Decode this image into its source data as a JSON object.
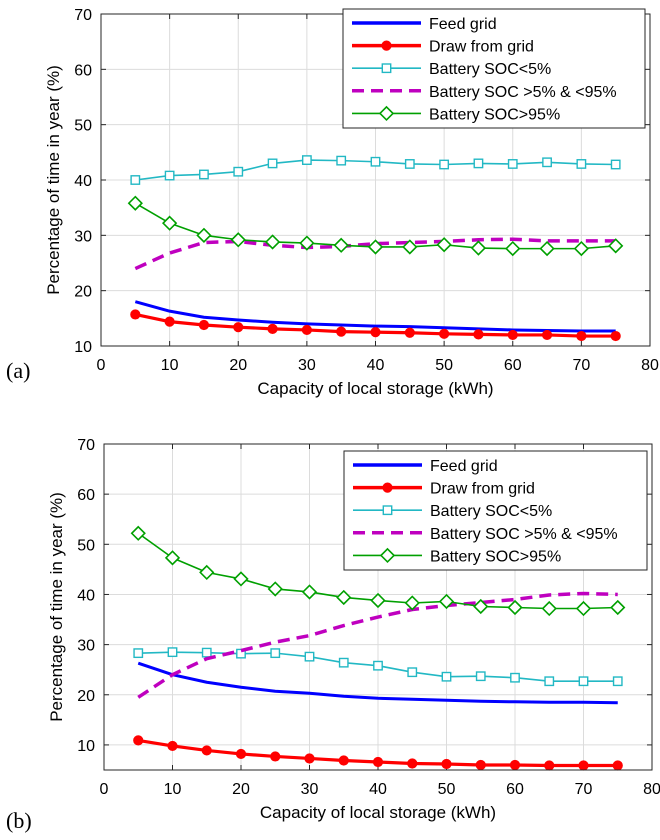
{
  "panels": [
    {
      "label": "(a)",
      "chart_data": {
        "type": "line",
        "xlabel": "Capacity of local storage (kWh)",
        "ylabel": "Percentage of time in year (%)",
        "xlim": [
          0,
          80
        ],
        "ylim": [
          10,
          70
        ],
        "xticks": [
          0,
          10,
          20,
          30,
          40,
          50,
          60,
          70,
          80
        ],
        "yticks": [
          10,
          20,
          30,
          40,
          50,
          60,
          70
        ],
        "grid": true,
        "legend_position": "top-right",
        "x": [
          5,
          10,
          15,
          20,
          25,
          30,
          35,
          40,
          45,
          50,
          55,
          60,
          65,
          70,
          75
        ],
        "series": [
          {
            "name": "Feed grid",
            "color": "#0000ff",
            "dash": "solid",
            "marker": "none",
            "values": [
              18.0,
              16.3,
              15.2,
              14.7,
              14.3,
              14.0,
              13.8,
              13.6,
              13.5,
              13.3,
              13.1,
              12.9,
              12.8,
              12.7,
              12.7
            ]
          },
          {
            "name": "Draw from grid",
            "color": "#ff0000",
            "dash": "solid",
            "marker": "dot",
            "values": [
              15.7,
              14.4,
              13.8,
              13.4,
              13.1,
              12.9,
              12.6,
              12.5,
              12.4,
              12.2,
              12.1,
              12.0,
              12.0,
              11.8,
              11.8
            ]
          },
          {
            "name": "Battery SOC<5%",
            "color": "#22b8c4",
            "dash": "solid",
            "marker": "square",
            "values": [
              40.0,
              40.8,
              41.0,
              41.5,
              43.0,
              43.6,
              43.5,
              43.3,
              42.9,
              42.8,
              43.0,
              42.9,
              43.2,
              42.9,
              42.8
            ]
          },
          {
            "name": "Battery SOC >5% & <95%",
            "color": "#bf00bf",
            "dash": "dashed",
            "marker": "none",
            "values": [
              24.0,
              26.8,
              28.7,
              28.9,
              28.2,
              27.8,
              28.0,
              28.5,
              28.7,
              28.9,
              29.2,
              29.3,
              29.0,
              29.0,
              29.0
            ]
          },
          {
            "name": "Battery SOC>95%",
            "color": "#00a000",
            "dash": "solid",
            "marker": "diamond",
            "values": [
              35.8,
              32.2,
              30.0,
              29.2,
              28.8,
              28.6,
              28.2,
              27.9,
              27.9,
              28.3,
              27.7,
              27.6,
              27.6,
              27.6,
              28.1
            ]
          }
        ]
      }
    },
    {
      "label": "(b)",
      "chart_data": {
        "type": "line",
        "xlabel": "Capacity of local storage (kWh)",
        "ylabel": "Percentage of time in year (%)",
        "xlim": [
          0,
          80
        ],
        "ylim": [
          5,
          70
        ],
        "xticks": [
          0,
          10,
          20,
          30,
          40,
          50,
          60,
          70,
          80
        ],
        "yticks": [
          10,
          20,
          30,
          40,
          50,
          60,
          70
        ],
        "grid": true,
        "legend_position": "top-right",
        "x": [
          5,
          10,
          15,
          20,
          25,
          30,
          35,
          40,
          45,
          50,
          55,
          60,
          65,
          70,
          75
        ],
        "series": [
          {
            "name": "Feed grid",
            "color": "#0000ff",
            "dash": "solid",
            "marker": "none",
            "values": [
              26.3,
              24.0,
              22.5,
              21.5,
              20.7,
              20.3,
              19.7,
              19.3,
              19.1,
              18.9,
              18.7,
              18.6,
              18.5,
              18.5,
              18.4
            ]
          },
          {
            "name": "Draw from grid",
            "color": "#ff0000",
            "dash": "solid",
            "marker": "dot",
            "values": [
              10.9,
              9.8,
              8.9,
              8.2,
              7.7,
              7.3,
              6.9,
              6.6,
              6.3,
              6.2,
              6.0,
              6.0,
              5.9,
              5.9,
              5.9
            ]
          },
          {
            "name": "Battery SOC<5%",
            "color": "#22b8c4",
            "dash": "solid",
            "marker": "square",
            "values": [
              28.3,
              28.5,
              28.4,
              28.2,
              28.3,
              27.6,
              26.4,
              25.8,
              24.5,
              23.6,
              23.7,
              23.4,
              22.7,
              22.7,
              22.7
            ]
          },
          {
            "name": "Battery SOC >5% & <95%",
            "color": "#bf00bf",
            "dash": "dashed",
            "marker": "none",
            "values": [
              19.5,
              24.0,
              27.2,
              28.8,
              30.5,
              31.8,
              33.8,
              35.5,
              37.0,
              37.8,
              38.4,
              39.0,
              39.9,
              40.2,
              40.0
            ]
          },
          {
            "name": "Battery SOC>95%",
            "color": "#00a000",
            "dash": "solid",
            "marker": "diamond",
            "values": [
              52.2,
              47.3,
              44.4,
              43.1,
              41.1,
              40.5,
              39.4,
              38.8,
              38.3,
              38.6,
              37.6,
              37.4,
              37.2,
              37.2,
              37.4
            ]
          }
        ]
      }
    }
  ]
}
